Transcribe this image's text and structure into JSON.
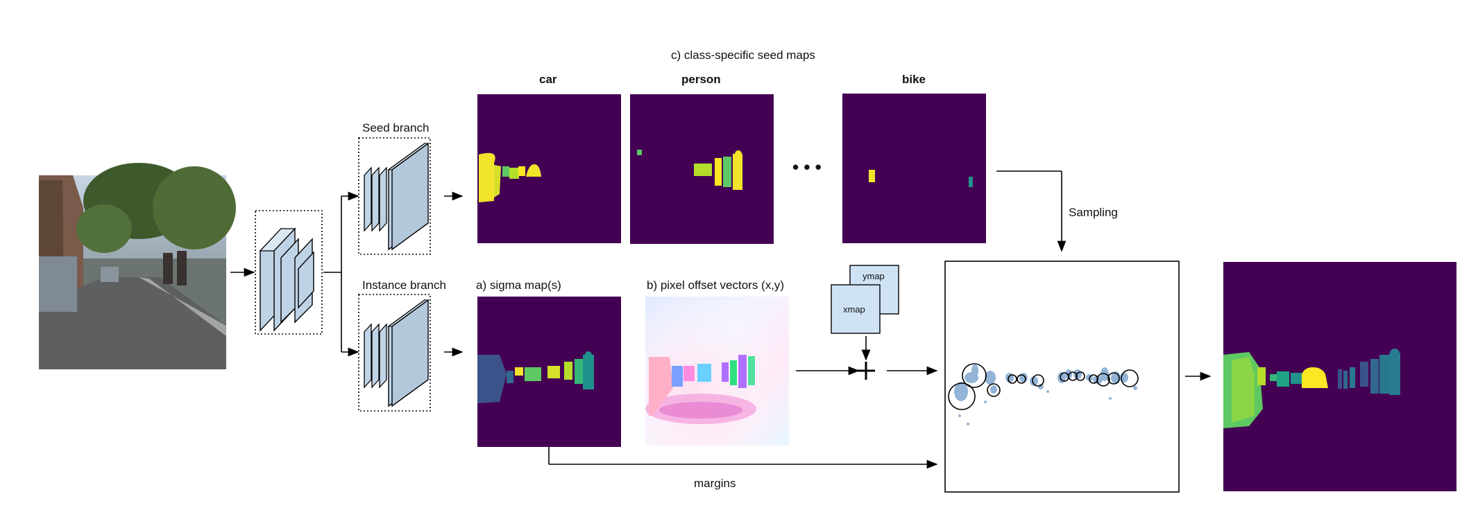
{
  "title": "c) class-specific seed maps",
  "seed_branch_label": "Seed branch",
  "instance_branch_label": "Instance branch",
  "classes": [
    {
      "label": "car"
    },
    {
      "label": "person"
    },
    {
      "label": "bike"
    }
  ],
  "ellipsis": "• • •",
  "sigma_label": "a)  sigma map(s)",
  "offset_label": "b) pixel offset vectors (x,y)",
  "ymap_label": "ymap",
  "xmap_label": "xmap",
  "plus_symbol": "+",
  "sampling_label": "Sampling",
  "margins_label": "margins",
  "colors": {
    "map_background": "#440154",
    "car_yellow": "#f2e42a",
    "green_mid": "#5ec962",
    "teal": "#21918c",
    "blue": "#3b528b",
    "box_fill": "#bfd3e6",
    "node_fill": "#cfe3f5"
  }
}
